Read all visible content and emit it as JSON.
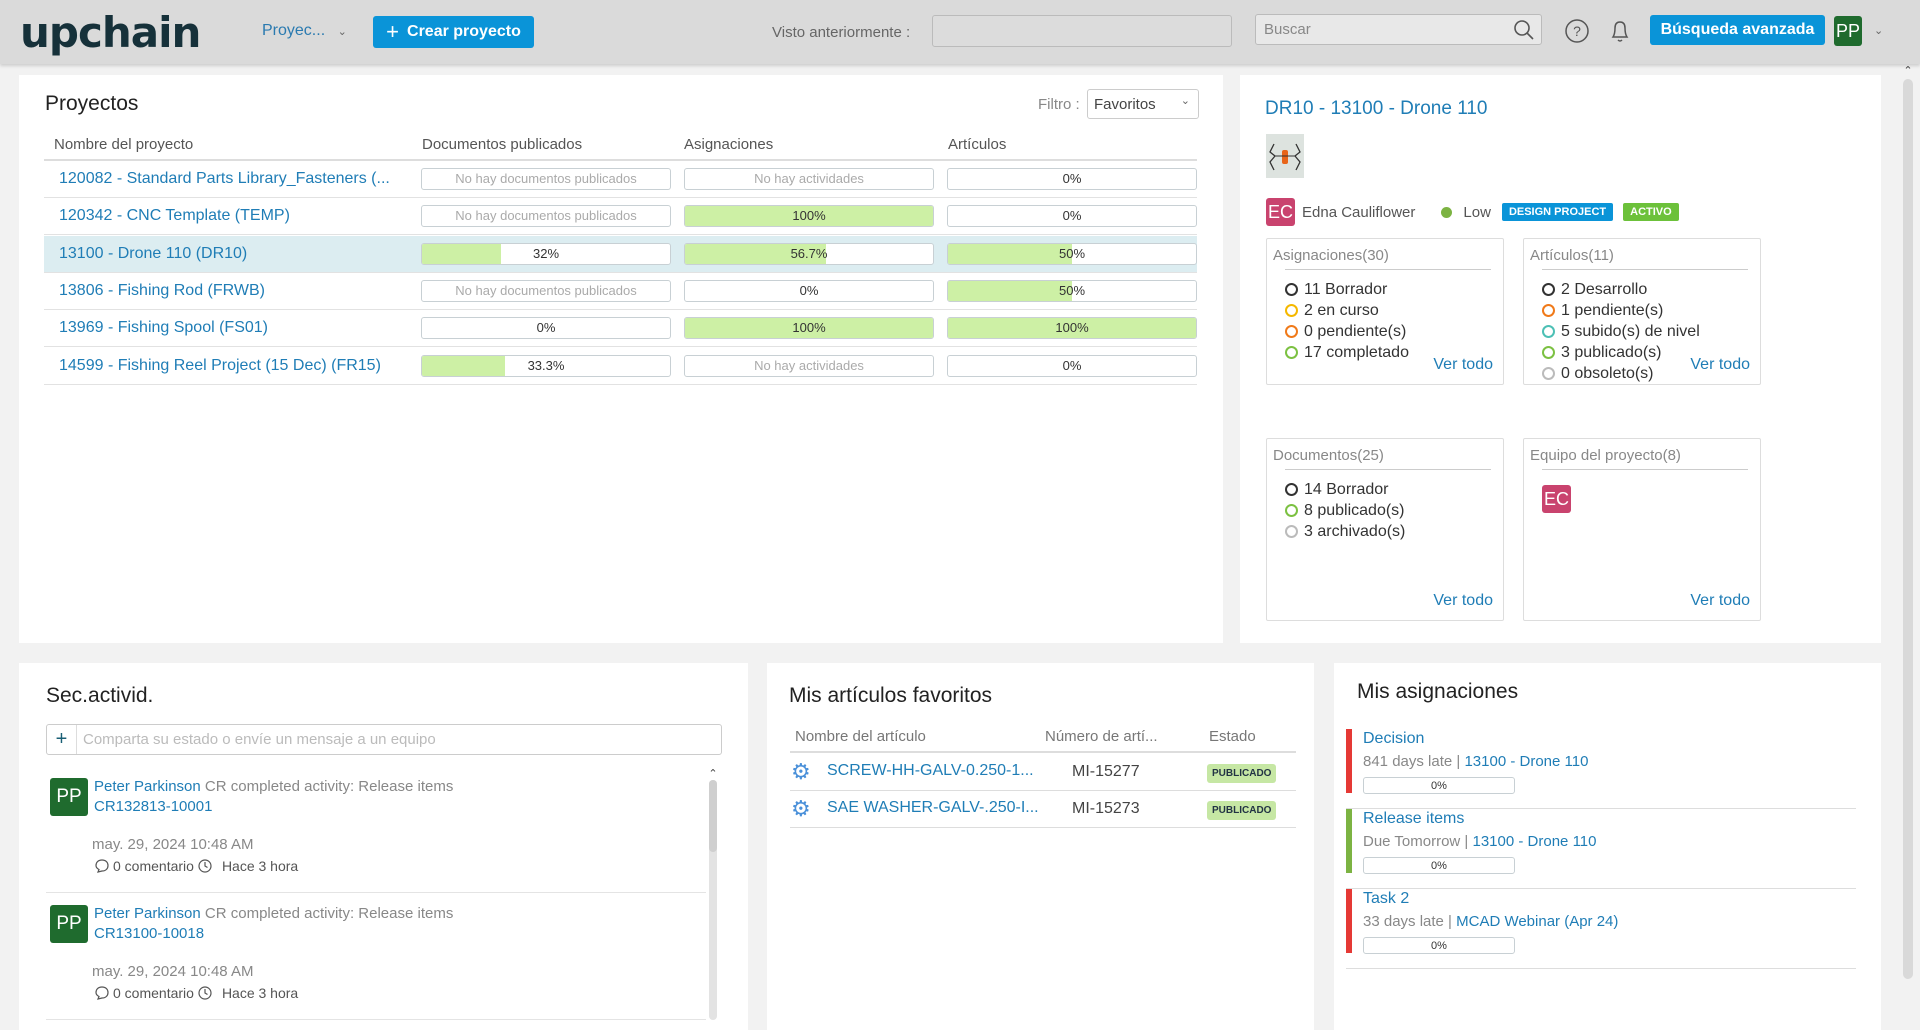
{
  "header": {
    "logo": "upchain",
    "nav_dropdown": "Proyec...",
    "create_button": "Crear proyecto",
    "recent_label": "Visto anteriormente :",
    "recent_value": "",
    "search_placeholder": "Buscar",
    "advanced_search": "Búsqueda avanzada",
    "user_initials": "PP"
  },
  "projects": {
    "title": "Proyectos",
    "filter_label": "Filtro :",
    "filter_value": "Favoritos",
    "columns": [
      "Nombre del proyecto",
      "Documentos publicados",
      "Asignaciones",
      "Artículos"
    ],
    "rows": [
      {
        "name": "120082 - Standard Parts Library_Fasteners (...",
        "docs": "No hay documentos publicados",
        "docs_pct": null,
        "asg": "No hay actividades",
        "asg_pct": null,
        "art": "0%",
        "art_pct": 0
      },
      {
        "name": "120342 - CNC Template (TEMP)",
        "docs": "No hay documentos publicados",
        "docs_pct": null,
        "asg": "100%",
        "asg_pct": 100,
        "art": "0%",
        "art_pct": 0
      },
      {
        "name": "13100 - Drone 110 (DR10)",
        "docs": "32%",
        "docs_pct": 32,
        "asg": "56.7%",
        "asg_pct": 56.7,
        "art": "50%",
        "art_pct": 50,
        "selected": true
      },
      {
        "name": "13806 - Fishing Rod (FRWB)",
        "docs": "No hay documentos publicados",
        "docs_pct": null,
        "asg": "0%",
        "asg_pct": 0,
        "art": "50%",
        "art_pct": 50
      },
      {
        "name": "13969 - Fishing Spool (FS01)",
        "docs": "0%",
        "docs_pct": 0,
        "asg": "100%",
        "asg_pct": 100,
        "art": "100%",
        "art_pct": 100
      },
      {
        "name": "14599 - Fishing Reel Project (15 Dec) (FR15)",
        "docs": "33.3%",
        "docs_pct": 33.3,
        "asg": "No hay actividades",
        "asg_pct": null,
        "art": "0%",
        "art_pct": 0
      }
    ]
  },
  "detail": {
    "title": "DR10 - 13100 - Drone 110",
    "owner_initials": "EC",
    "owner": "Edna Cauliflower",
    "priority": "Low",
    "type_badge": "DESIGN PROJECT",
    "status_badge": "ACTIVO",
    "cards": [
      {
        "title": "Asignaciones(30)",
        "items": [
          {
            "text": "11 Borrador",
            "color": "#333333"
          },
          {
            "text": "2 en curso",
            "color": "#f5b800"
          },
          {
            "text": "0 pendiente(s)",
            "color": "#f07a1a"
          },
          {
            "text": "17 completado",
            "color": "#7cc142"
          }
        ],
        "link": "Ver todo"
      },
      {
        "title": "Artículos(11)",
        "items": [
          {
            "text": "2 Desarrollo",
            "color": "#333333"
          },
          {
            "text": "1 pendiente(s)",
            "color": "#f07a1a"
          },
          {
            "text": "5 subido(s) de nivel",
            "color": "#4dc0b5"
          },
          {
            "text": "3 publicado(s)",
            "color": "#7cc142"
          },
          {
            "text": "0 obsoleto(s)",
            "color": "#bbbbbb"
          }
        ],
        "link": "Ver todo"
      },
      {
        "title": "Documentos(25)",
        "items": [
          {
            "text": "14 Borrador",
            "color": "#333333"
          },
          {
            "text": "8 publicado(s)",
            "color": "#7cc142"
          },
          {
            "text": "3 archivado(s)",
            "color": "#bbbbbb"
          }
        ],
        "link": "Ver todo"
      },
      {
        "title": "Equipo del proyecto(8)",
        "members": [
          "EC"
        ],
        "link": "Ver todo"
      }
    ]
  },
  "activity": {
    "title": "Sec.activid.",
    "placeholder": "Comparta su estado o envíe un mensaje a un equipo",
    "items": [
      {
        "initials": "PP",
        "user": "Peter Parkinson",
        "text": " CR completed activity: Release items",
        "ref": "CR132813-10001",
        "date": "may. 29, 2024 10:48 AM",
        "comments": "0 comentario",
        "ago": "Hace 3 hora"
      },
      {
        "initials": "PP",
        "user": "Peter Parkinson",
        "text": " CR completed activity: Release items",
        "ref": "CR13100-10018",
        "date": "may. 29, 2024 10:48 AM",
        "comments": "0 comentario",
        "ago": "Hace 3 hora"
      }
    ]
  },
  "favorites": {
    "title": "Mis artículos favoritos",
    "columns": [
      "Nombre del artículo",
      "Número de artí...",
      "Estado"
    ],
    "rows": [
      {
        "name": "SCREW-HH-GALV-0.250-1...",
        "number": "MI-15277",
        "status": "PUBLICADO"
      },
      {
        "name": "SAE WASHER-GALV-.250-I...",
        "number": "MI-15273",
        "status": "PUBLICADO"
      }
    ]
  },
  "assignments": {
    "title": "Mis asignaciones",
    "items": [
      {
        "title": "Decision",
        "status": "841 days late | ",
        "project": "13100 - Drone 110",
        "progress": "0%",
        "color": "#e53935"
      },
      {
        "title": "Release items",
        "status": "Due Tomorrow | ",
        "project": "13100 - Drone 110",
        "progress": "0%",
        "color": "#7cb342"
      },
      {
        "title": "Task 2",
        "status": "33 days late | ",
        "project": "MCAD Webinar (Apr 24)",
        "progress": "0%",
        "color": "#e53935"
      }
    ]
  }
}
